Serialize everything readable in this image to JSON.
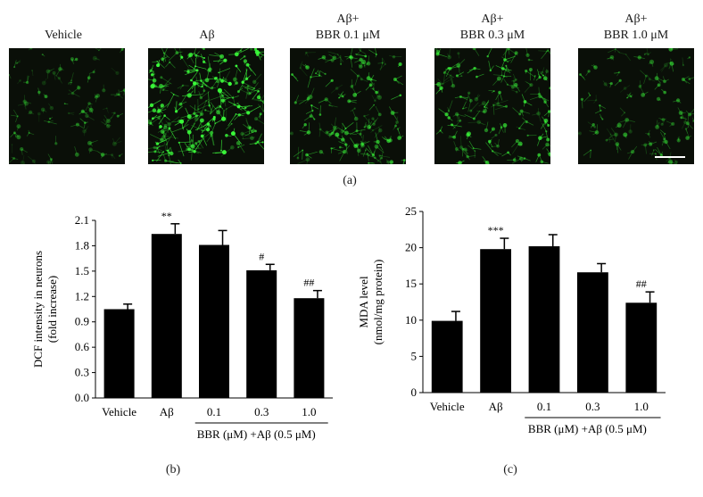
{
  "panel_a": {
    "label": "(a)",
    "images": [
      {
        "caption_lines": [
          "Vehicle"
        ],
        "intensity": 0.25
      },
      {
        "caption_lines": [
          "Aβ"
        ],
        "intensity": 1.0
      },
      {
        "caption_lines": [
          "Aβ+",
          "BBR 0.1 μM"
        ],
        "intensity": 0.55
      },
      {
        "caption_lines": [
          "Aβ+",
          "BBR 0.3 μM"
        ],
        "intensity": 0.6
      },
      {
        "caption_lines": [
          "Aβ+",
          "BBR 1.0 μM"
        ],
        "intensity": 0.3
      }
    ],
    "colors": {
      "background": "#0a0f08",
      "signal": "#3cff3c",
      "scale_bar": "#ffffff"
    }
  },
  "panel_b": {
    "label": "(b)"
  },
  "panel_c": {
    "label": "(c)"
  },
  "chart_data": [
    {
      "type": "bar",
      "panel": "(b)",
      "categories": [
        "Vehicle",
        "Aβ",
        "0.1",
        "0.3",
        "1.0"
      ],
      "values": [
        1.05,
        1.94,
        1.81,
        1.51,
        1.18
      ],
      "errors": [
        0.06,
        0.12,
        0.17,
        0.07,
        0.09
      ],
      "significance": [
        "",
        "**",
        "",
        "#",
        "##"
      ],
      "ylabel_lines": [
        "DCF intensity in neurons",
        "(fold increase)"
      ],
      "group_label": "BBR (μM) +Aβ (0.5 μM)",
      "yticks": [
        "0.0",
        "0.3",
        "0.6",
        "0.9",
        "1.2",
        "1.5",
        "1.8",
        "2.1"
      ],
      "ylim": [
        0,
        2.1
      ],
      "bar_color": "#000000"
    },
    {
      "type": "bar",
      "panel": "(c)",
      "categories": [
        "Vehicle",
        "Aβ",
        "0.1",
        "0.3",
        "1.0"
      ],
      "values": [
        9.9,
        19.8,
        20.2,
        16.6,
        12.4
      ],
      "errors": [
        1.3,
        1.5,
        1.6,
        1.2,
        1.5
      ],
      "significance": [
        "",
        "***",
        "",
        "",
        "##"
      ],
      "ylabel_lines": [
        "MDA level",
        "(nmol/mg protein)"
      ],
      "group_label": "BBR (μM) +Aβ (0.5 μM)",
      "yticks": [
        "0",
        "5",
        "10",
        "15",
        "20",
        "25"
      ],
      "ylim": [
        0,
        25
      ],
      "bar_color": "#000000"
    }
  ]
}
